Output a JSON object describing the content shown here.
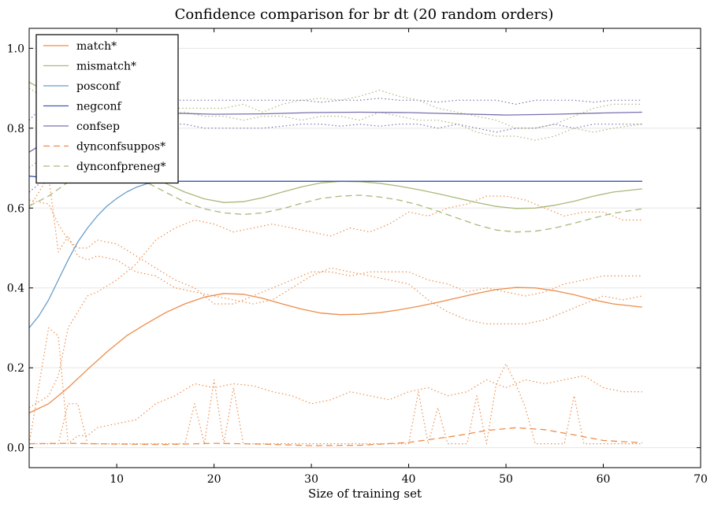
{
  "chart_data": {
    "type": "line",
    "title": "Confidence comparison for br dt (20 random orders)",
    "xlabel": "Size of training set",
    "ylabel": "",
    "xlim": [
      1,
      70
    ],
    "ylim": [
      -0.05,
      1.05
    ],
    "xticks": [
      10,
      20,
      30,
      40,
      50,
      60,
      70
    ],
    "yticks": [
      0.0,
      0.2,
      0.4,
      0.6,
      0.8,
      1.0
    ],
    "ytick_labels": [
      "0.0",
      "0.2",
      "0.4",
      "0.6",
      "0.8",
      "1.0"
    ],
    "grid": "horizontal",
    "legend_position": "top-left",
    "series": [
      {
        "name": "match*",
        "color": "#ee8d4a",
        "style": "solid",
        "x": [
          1,
          3,
          5,
          7,
          9,
          11,
          13,
          15,
          17,
          19,
          21,
          23,
          25,
          27,
          29,
          31,
          33,
          35,
          37,
          39,
          41,
          43,
          45,
          47,
          49,
          51,
          53,
          55,
          57,
          59,
          61,
          64
        ],
        "y": [
          0.087,
          0.11,
          0.15,
          0.196,
          0.24,
          0.28,
          0.31,
          0.338,
          0.36,
          0.377,
          0.386,
          0.384,
          0.374,
          0.36,
          0.347,
          0.337,
          0.333,
          0.334,
          0.338,
          0.345,
          0.354,
          0.364,
          0.375,
          0.386,
          0.396,
          0.401,
          0.4,
          0.393,
          0.383,
          0.37,
          0.36,
          0.352
        ]
      },
      {
        "name": "mismatch*",
        "color": "#a9b979",
        "style": "solid",
        "x": [
          1,
          3,
          5,
          7,
          9,
          11,
          13,
          15,
          17,
          19,
          21,
          23,
          25,
          27,
          29,
          31,
          33,
          35,
          37,
          39,
          41,
          43,
          45,
          47,
          49,
          51,
          53,
          55,
          57,
          59,
          61,
          64
        ],
        "y": [
          0.915,
          0.89,
          0.85,
          0.805,
          0.76,
          0.72,
          0.69,
          0.662,
          0.64,
          0.623,
          0.614,
          0.616,
          0.626,
          0.64,
          0.653,
          0.663,
          0.667,
          0.666,
          0.662,
          0.655,
          0.646,
          0.636,
          0.625,
          0.614,
          0.604,
          0.599,
          0.6,
          0.607,
          0.617,
          0.63,
          0.64,
          0.648
        ]
      },
      {
        "name": "posconf",
        "color": "#6a9ec8",
        "style": "solid",
        "x": [
          1,
          2,
          3,
          4,
          5,
          6,
          7,
          8,
          9,
          10,
          11,
          12,
          13,
          14,
          15,
          16,
          18,
          20,
          25,
          30,
          40,
          50,
          64
        ],
        "y": [
          0.3,
          0.33,
          0.37,
          0.42,
          0.47,
          0.515,
          0.55,
          0.58,
          0.605,
          0.624,
          0.64,
          0.652,
          0.66,
          0.665,
          0.667,
          0.667,
          0.667,
          0.667,
          0.667,
          0.667,
          0.667,
          0.667,
          0.667
        ]
      },
      {
        "name": "negconf",
        "color": "#3e5cb8",
        "style": "solid",
        "x": [
          1,
          3,
          5,
          10,
          15,
          20,
          30,
          40,
          50,
          64
        ],
        "y": [
          0.68,
          0.675,
          0.672,
          0.669,
          0.667,
          0.667,
          0.667,
          0.667,
          0.667,
          0.667
        ]
      },
      {
        "name": "confsep",
        "color": "#7d6fae",
        "style": "solid",
        "x": [
          1,
          2,
          3,
          4,
          5,
          6,
          7,
          8,
          10,
          12,
          15,
          20,
          25,
          30,
          35,
          40,
          45,
          50,
          55,
          60,
          64
        ],
        "y": [
          0.74,
          0.755,
          0.775,
          0.795,
          0.812,
          0.823,
          0.83,
          0.835,
          0.838,
          0.839,
          0.838,
          0.835,
          0.836,
          0.839,
          0.84,
          0.839,
          0.836,
          0.833,
          0.835,
          0.838,
          0.84
        ]
      },
      {
        "name": "dynconfsuppos*",
        "color": "#ee8d4a",
        "style": "dashed",
        "x": [
          1,
          5,
          10,
          15,
          20,
          25,
          30,
          35,
          40,
          45,
          48,
          51,
          54,
          57,
          60,
          64
        ],
        "y": [
          0.01,
          0.011,
          0.009,
          0.008,
          0.011,
          0.009,
          0.005,
          0.006,
          0.013,
          0.03,
          0.043,
          0.05,
          0.045,
          0.032,
          0.018,
          0.012
        ]
      },
      {
        "name": "dynconfpreneg*",
        "color": "#a9b979",
        "style": "dashed",
        "x": [
          1,
          3,
          5,
          7,
          9,
          11,
          13,
          15,
          17,
          19,
          21,
          23,
          25,
          27,
          29,
          31,
          33,
          35,
          37,
          39,
          41,
          43,
          45,
          47,
          49,
          51,
          53,
          55,
          57,
          59,
          61,
          64
        ],
        "y": [
          0.605,
          0.63,
          0.665,
          0.695,
          0.7,
          0.69,
          0.665,
          0.64,
          0.615,
          0.598,
          0.588,
          0.584,
          0.588,
          0.598,
          0.612,
          0.624,
          0.63,
          0.632,
          0.628,
          0.62,
          0.608,
          0.592,
          0.575,
          0.558,
          0.545,
          0.54,
          0.542,
          0.55,
          0.562,
          0.575,
          0.587,
          0.598
        ]
      },
      {
        "name": "",
        "color": "#ee8d4a",
        "style": "dotted",
        "x": [
          1,
          3,
          4,
          5,
          6,
          7,
          8,
          9,
          10,
          12,
          14,
          16,
          18,
          20,
          22,
          24,
          26,
          28,
          30,
          32,
          34,
          36,
          38,
          40,
          42,
          44,
          46,
          48,
          50,
          52,
          54,
          56,
          58,
          60,
          62,
          64
        ],
        "y": [
          0.01,
          0.3,
          0.28,
          0.01,
          0.03,
          0.03,
          0.05,
          0.055,
          0.06,
          0.07,
          0.11,
          0.13,
          0.16,
          0.15,
          0.16,
          0.155,
          0.14,
          0.13,
          0.11,
          0.12,
          0.14,
          0.13,
          0.12,
          0.14,
          0.15,
          0.13,
          0.14,
          0.17,
          0.15,
          0.17,
          0.16,
          0.17,
          0.18,
          0.15,
          0.14,
          0.14
        ]
      },
      {
        "name": "",
        "color": "#ee8d4a",
        "style": "dotted",
        "x": [
          1,
          4,
          5,
          6,
          7,
          8,
          9,
          10,
          12,
          14,
          16,
          17,
          18,
          19,
          20,
          21,
          22,
          23,
          24,
          26,
          28,
          30,
          32,
          34,
          36,
          38,
          40,
          41,
          42,
          43,
          44,
          45,
          46,
          47,
          48,
          49,
          50,
          51,
          52,
          53,
          54,
          56,
          57,
          58,
          60,
          62,
          64
        ],
        "y": [
          0.01,
          0.01,
          0.11,
          0.11,
          0.01,
          0.01,
          0.01,
          0.01,
          0.01,
          0.01,
          0.01,
          0.01,
          0.11,
          0.01,
          0.17,
          0.01,
          0.15,
          0.01,
          0.01,
          0.01,
          0.01,
          0.01,
          0.01,
          0.01,
          0.01,
          0.01,
          0.01,
          0.14,
          0.01,
          0.1,
          0.01,
          0.01,
          0.01,
          0.13,
          0.01,
          0.16,
          0.21,
          0.16,
          0.1,
          0.01,
          0.01,
          0.01,
          0.13,
          0.01,
          0.01,
          0.01,
          0.01
        ]
      },
      {
        "name": "",
        "color": "#ee8d4a",
        "style": "dotted",
        "x": [
          1,
          3,
          4,
          5,
          6,
          7,
          8,
          10,
          12,
          14,
          16,
          18,
          20,
          22,
          24,
          26,
          28,
          30,
          32,
          34,
          36,
          38,
          40,
          42,
          44,
          46,
          48,
          50,
          52,
          54,
          56,
          58,
          60,
          62,
          64
        ],
        "y": [
          0.6,
          0.68,
          0.49,
          0.53,
          0.48,
          0.47,
          0.48,
          0.47,
          0.44,
          0.43,
          0.4,
          0.39,
          0.38,
          0.37,
          0.36,
          0.37,
          0.4,
          0.43,
          0.45,
          0.44,
          0.43,
          0.42,
          0.41,
          0.37,
          0.34,
          0.32,
          0.31,
          0.31,
          0.31,
          0.32,
          0.34,
          0.36,
          0.38,
          0.37,
          0.38
        ]
      },
      {
        "name": "",
        "color": "#ee8d4a",
        "style": "dotted",
        "x": [
          1,
          3,
          4,
          5,
          6,
          7,
          8,
          10,
          12,
          14,
          16,
          18,
          20,
          22,
          24,
          26,
          28,
          30,
          32,
          34,
          36,
          38,
          40,
          42,
          44,
          46,
          48,
          50,
          52,
          54,
          56,
          58,
          60,
          62,
          64
        ],
        "y": [
          0.1,
          0.13,
          0.18,
          0.3,
          0.34,
          0.38,
          0.39,
          0.42,
          0.46,
          0.52,
          0.55,
          0.57,
          0.56,
          0.54,
          0.55,
          0.56,
          0.55,
          0.54,
          0.53,
          0.55,
          0.54,
          0.56,
          0.59,
          0.58,
          0.6,
          0.61,
          0.63,
          0.63,
          0.62,
          0.6,
          0.58,
          0.59,
          0.59,
          0.57,
          0.57
        ]
      },
      {
        "name": "",
        "color": "#ee8d4a",
        "style": "dotted",
        "x": [
          1,
          3,
          4,
          5,
          6,
          7,
          8,
          10,
          12,
          14,
          16,
          18,
          20,
          22,
          24,
          26,
          28,
          30,
          32,
          34,
          36,
          38,
          40,
          42,
          44,
          46,
          48,
          50,
          52,
          54,
          56,
          58,
          60,
          62,
          64
        ],
        "y": [
          0.62,
          0.61,
          0.56,
          0.52,
          0.5,
          0.5,
          0.52,
          0.51,
          0.48,
          0.45,
          0.42,
          0.4,
          0.36,
          0.36,
          0.38,
          0.4,
          0.42,
          0.44,
          0.44,
          0.43,
          0.44,
          0.44,
          0.44,
          0.42,
          0.41,
          0.39,
          0.4,
          0.39,
          0.38,
          0.39,
          0.41,
          0.42,
          0.43,
          0.43,
          0.43
        ]
      },
      {
        "name": "",
        "color": "#7d6fae",
        "style": "dotted",
        "x": [
          1,
          3,
          5,
          7,
          9,
          11,
          13,
          15,
          17,
          19,
          21,
          23,
          25,
          27,
          29,
          31,
          33,
          35,
          37,
          39,
          41,
          43,
          45,
          47,
          49,
          51,
          53,
          55,
          57,
          59,
          61,
          64
        ],
        "y": [
          0.82,
          0.87,
          0.86,
          0.86,
          0.86,
          0.86,
          0.87,
          0.87,
          0.87,
          0.87,
          0.87,
          0.87,
          0.87,
          0.87,
          0.87,
          0.865,
          0.87,
          0.87,
          0.875,
          0.87,
          0.87,
          0.865,
          0.87,
          0.87,
          0.87,
          0.86,
          0.87,
          0.87,
          0.87,
          0.865,
          0.87,
          0.87
        ]
      },
      {
        "name": "",
        "color": "#7d6fae",
        "style": "dotted",
        "x": [
          1,
          3,
          5,
          7,
          9,
          11,
          13,
          15,
          17,
          19,
          21,
          23,
          25,
          27,
          29,
          31,
          33,
          35,
          37,
          39,
          41,
          43,
          45,
          47,
          49,
          51,
          53,
          55,
          57,
          59,
          61,
          64
        ],
        "y": [
          0.64,
          0.68,
          0.76,
          0.8,
          0.81,
          0.81,
          0.815,
          0.81,
          0.81,
          0.8,
          0.8,
          0.8,
          0.8,
          0.805,
          0.81,
          0.81,
          0.805,
          0.81,
          0.805,
          0.81,
          0.81,
          0.8,
          0.81,
          0.8,
          0.79,
          0.8,
          0.8,
          0.81,
          0.8,
          0.81,
          0.81,
          0.81
        ]
      },
      {
        "name": "",
        "color": "#a9b979",
        "style": "dotted",
        "x": [
          1,
          3,
          5,
          7,
          9,
          11,
          13,
          15,
          17,
          19,
          21,
          23,
          25,
          27,
          29,
          31,
          33,
          35,
          37,
          39,
          41,
          43,
          45,
          47,
          49,
          51,
          53,
          55,
          57,
          59,
          61,
          64
        ],
        "y": [
          0.9,
          0.87,
          0.85,
          0.85,
          0.84,
          0.85,
          0.86,
          0.85,
          0.85,
          0.85,
          0.85,
          0.86,
          0.84,
          0.86,
          0.87,
          0.875,
          0.87,
          0.88,
          0.895,
          0.88,
          0.87,
          0.85,
          0.84,
          0.83,
          0.82,
          0.8,
          0.8,
          0.81,
          0.83,
          0.85,
          0.86,
          0.86
        ]
      },
      {
        "name": "",
        "color": "#a9b979",
        "style": "dotted",
        "x": [
          1,
          3,
          5,
          7,
          9,
          11,
          13,
          15,
          17,
          19,
          21,
          23,
          25,
          27,
          29,
          31,
          33,
          35,
          37,
          39,
          41,
          43,
          45,
          47,
          49,
          51,
          53,
          55,
          57,
          59,
          61,
          64
        ],
        "y": [
          0.7,
          0.74,
          0.78,
          0.8,
          0.82,
          0.83,
          0.84,
          0.835,
          0.84,
          0.83,
          0.83,
          0.82,
          0.83,
          0.83,
          0.82,
          0.83,
          0.83,
          0.82,
          0.84,
          0.83,
          0.82,
          0.82,
          0.81,
          0.79,
          0.78,
          0.78,
          0.77,
          0.78,
          0.8,
          0.79,
          0.8,
          0.81
        ]
      }
    ]
  }
}
